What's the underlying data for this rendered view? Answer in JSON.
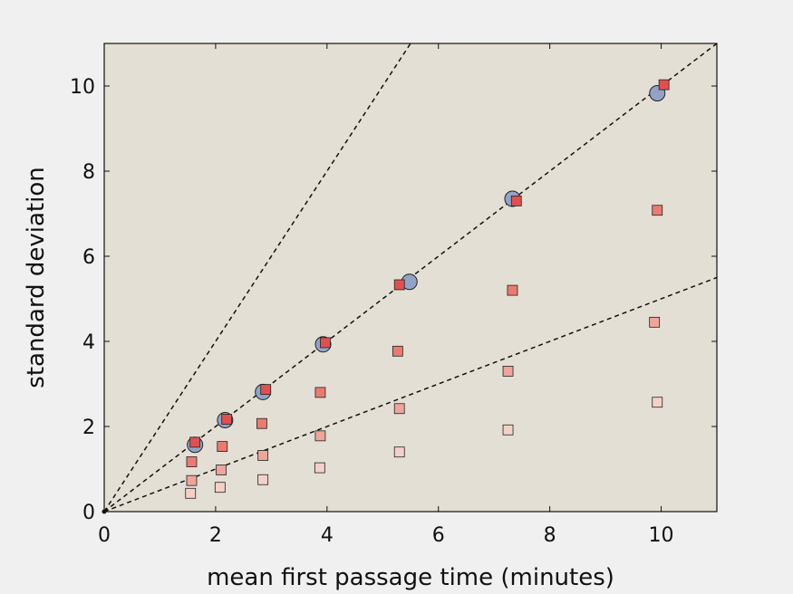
{
  "chart_data": {
    "type": "scatter",
    "title": "",
    "xlabel": "mean first passage time (minutes)",
    "ylabel": "standard deviation",
    "xlim": [
      0,
      11
    ],
    "ylim": [
      0,
      11
    ],
    "x_ticks": [
      0,
      2,
      4,
      6,
      8,
      10
    ],
    "y_ticks": [
      0,
      2,
      4,
      6,
      8,
      10
    ],
    "grid": false,
    "background_color": "#e4dfd4",
    "series": [
      {
        "marker": "circle",
        "color": "#93a3c8",
        "points": [
          [
            1.63,
            1.57
          ],
          [
            2.17,
            2.15
          ],
          [
            2.85,
            2.81
          ],
          [
            3.93,
            3.93
          ],
          [
            5.48,
            5.4
          ],
          [
            7.33,
            7.35
          ],
          [
            9.93,
            9.83
          ]
        ]
      },
      {
        "marker": "square",
        "color": "#e05050",
        "points": [
          [
            1.63,
            1.63
          ],
          [
            2.2,
            2.17
          ],
          [
            2.9,
            2.87
          ],
          [
            3.97,
            3.97
          ],
          [
            5.3,
            5.33
          ],
          [
            7.4,
            7.3
          ],
          [
            10.05,
            10.03
          ]
        ]
      },
      {
        "marker": "square",
        "color": "#ea7b72",
        "points": [
          [
            1.57,
            1.17
          ],
          [
            2.12,
            1.53
          ],
          [
            2.83,
            2.07
          ],
          [
            3.88,
            2.8
          ],
          [
            5.27,
            3.77
          ],
          [
            7.33,
            5.2
          ],
          [
            9.93,
            7.08
          ]
        ]
      },
      {
        "marker": "square",
        "color": "#eea59c",
        "points": [
          [
            1.57,
            0.73
          ],
          [
            2.1,
            0.98
          ],
          [
            2.85,
            1.32
          ],
          [
            3.88,
            1.78
          ],
          [
            5.3,
            2.42
          ],
          [
            7.25,
            3.3
          ],
          [
            9.88,
            4.45
          ]
        ]
      },
      {
        "marker": "square",
        "color": "#f5d0c9",
        "points": [
          [
            1.55,
            0.43
          ],
          [
            2.08,
            0.57
          ],
          [
            2.85,
            0.75
          ],
          [
            3.87,
            1.03
          ],
          [
            5.3,
            1.4
          ],
          [
            7.25,
            1.92
          ],
          [
            9.93,
            2.57
          ]
        ]
      }
    ],
    "reference_lines": [
      {
        "style": "dashed",
        "slope": 2.0
      },
      {
        "style": "dashed",
        "slope": 1.0
      },
      {
        "style": "dashed",
        "slope": 0.5
      }
    ]
  }
}
